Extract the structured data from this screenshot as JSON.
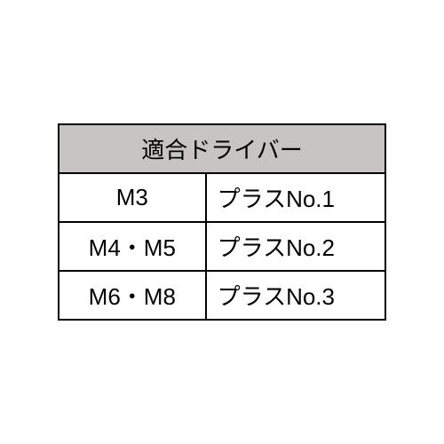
{
  "table": {
    "header": "適合ドライバー",
    "columns": [
      "size",
      "driver"
    ],
    "column_widths": [
      "45%",
      "55%"
    ],
    "rows": [
      {
        "size": "M3",
        "driver": "プラスNo.1"
      },
      {
        "size": "M4・M5",
        "driver": "プラスNo.2"
      },
      {
        "size": "M6・M8",
        "driver": "プラスNo.3"
      }
    ],
    "header_bg_color": "#c8c4c4",
    "cell_bg_color": "#ffffff",
    "border_color": "#000000",
    "border_width": 2,
    "font_size": 26,
    "font_family": "MS Gothic"
  }
}
